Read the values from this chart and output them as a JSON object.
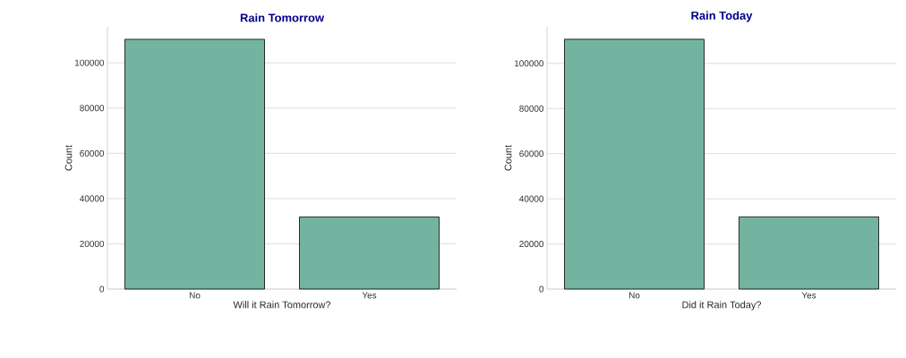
{
  "chart_data": [
    {
      "type": "bar",
      "title": "Rain Tomorrow",
      "xlabel": "Will it Rain Tomorrow?",
      "ylabel": "Count",
      "categories": [
        "No",
        "Yes"
      ],
      "values": [
        110400,
        31900
      ],
      "color": "#73b4a1",
      "ylim": [
        0,
        115900
      ],
      "yticks": [
        0,
        20000,
        40000,
        60000,
        80000,
        100000
      ],
      "grid": "y"
    },
    {
      "type": "bar",
      "title": "Rain Today",
      "xlabel": "Did it Rain Today?",
      "ylabel": "Count",
      "categories": [
        "No",
        "Yes"
      ],
      "values": [
        110700,
        32000
      ],
      "color": "#73b4a1",
      "ylim": [
        0,
        116200
      ],
      "yticks": [
        0,
        20000,
        40000,
        60000,
        80000,
        100000
      ],
      "grid": "y"
    }
  ]
}
